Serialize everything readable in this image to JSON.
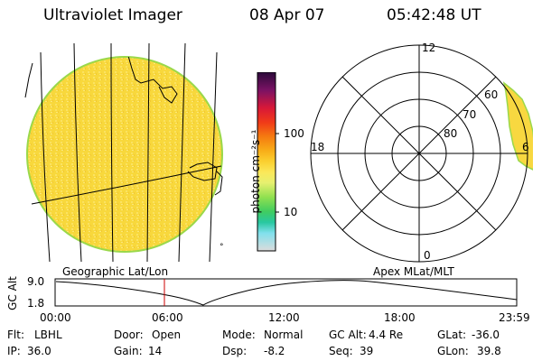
{
  "header": {
    "title": "Ultraviolet Imager",
    "date": "08 Apr 07",
    "time": "05:42:48 UT"
  },
  "colorbar": {
    "label": "photon cm⁻²s⁻¹",
    "ticks": [
      "100",
      "10"
    ],
    "colors": [
      "#2b0a3a",
      "#5a1060",
      "#9a1560",
      "#d81838",
      "#f03a18",
      "#f57a10",
      "#f8ae18",
      "#fbd030",
      "#fbe85a",
      "#e6f070",
      "#b8e860",
      "#80dc50",
      "#40cc60",
      "#28c8a0",
      "#40d8e0",
      "#b8ecf4",
      "#dcdcdc"
    ]
  },
  "left_panel": {
    "label": "Geographic Lat/Lon",
    "disk_color": "#f8d840",
    "limb_color": "#9ad84a"
  },
  "right_panel": {
    "label": "Apex MLat/MLT",
    "mlt_labels": {
      "top": "12",
      "left": "18",
      "bottom": "0",
      "right": "6"
    },
    "lat_labels": [
      "60",
      "70",
      "80"
    ]
  },
  "altitude_plot": {
    "ylabel": "GC Alt",
    "ytick_top": "9.0",
    "ytick_bottom": "1.8",
    "xticks": [
      "00:00",
      "06:00",
      "12:00",
      "18:00",
      "23:59"
    ],
    "marker_color": "#cc0000"
  },
  "info_rows": [
    [
      {
        "label": "Flt:",
        "value": "LBHL"
      },
      {
        "label": "Door:",
        "value": "Open"
      },
      {
        "label": "Mode:",
        "value": "Normal"
      },
      {
        "label": "GC Alt:",
        "value": "4.4 Re"
      },
      {
        "label": "GLat:",
        "value": "-36.0"
      }
    ],
    [
      {
        "label": "IP:",
        "value": "36.0"
      },
      {
        "label": "Gain:",
        "value": "14"
      },
      {
        "label": "Dsp:",
        "value": "-8.2"
      },
      {
        "label": "Seq:",
        "value": "39"
      },
      {
        "label": "GLon:",
        "value": "39.8"
      }
    ]
  ]
}
